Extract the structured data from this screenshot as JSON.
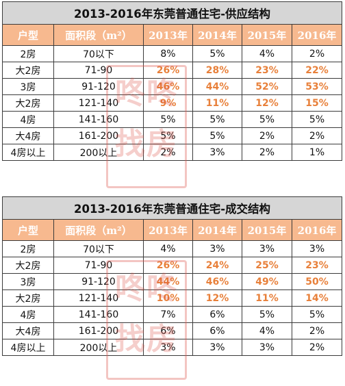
{
  "tables": [
    {
      "title": "2013-2016年东莞普通住宅-供应结构",
      "headers": [
        "户型",
        "面积段（m²）",
        "2013年",
        "2014年",
        "2015年",
        "2016年"
      ],
      "rows": [
        {
          "type": "2房",
          "range": "70以下",
          "y2013": "8%",
          "y2014": "5%",
          "y2015": "4%",
          "y2016": "2%",
          "hl": false
        },
        {
          "type": "大2房",
          "range": "71-90",
          "y2013": "26%",
          "y2014": "28%",
          "y2015": "23%",
          "y2016": "22%",
          "hl": true
        },
        {
          "type": "3房",
          "range": "91-120",
          "y2013": "46%",
          "y2014": "44%",
          "y2015": "52%",
          "y2016": "53%",
          "hl": true
        },
        {
          "type": "大2房",
          "range": "121-140",
          "y2013": "9%",
          "y2014": "11%",
          "y2015": "12%",
          "y2016": "15%",
          "hl": true
        },
        {
          "type": "4房",
          "range": "141-160",
          "y2013": "5%",
          "y2014": "5%",
          "y2015": "5%",
          "y2016": "5%",
          "hl": false
        },
        {
          "type": "大4房",
          "range": "161-200",
          "y2013": "5%",
          "y2014": "5%",
          "y2015": "2%",
          "y2016": "2%",
          "hl": false
        },
        {
          "type": "4房以上",
          "range": "200以上",
          "y2013": "2%",
          "y2014": "3%",
          "y2015": "2%",
          "y2016": "1%",
          "hl": false
        }
      ]
    },
    {
      "title": "2013-2016年东莞普通住宅-成交结构",
      "headers": [
        "户型",
        "面积段（m²）",
        "2013年",
        "2014年",
        "2015年",
        "2016年"
      ],
      "rows": [
        {
          "type": "2房",
          "range": "70以下",
          "y2013": "4%",
          "y2014": "3%",
          "y2015": "3%",
          "y2016": "3%",
          "hl": false
        },
        {
          "type": "大2房",
          "range": "71-90",
          "y2013": "26%",
          "y2014": "24%",
          "y2015": "25%",
          "y2016": "23%",
          "hl": true
        },
        {
          "type": "3房",
          "range": "91-120",
          "y2013": "44%",
          "y2014": "46%",
          "y2015": "49%",
          "y2016": "50%",
          "hl": true
        },
        {
          "type": "大2房",
          "range": "121-140",
          "y2013": "10%",
          "y2014": "12%",
          "y2015": "11%",
          "y2016": "14%",
          "hl": true
        },
        {
          "type": "4房",
          "range": "141-160",
          "y2013": "7%",
          "y2014": "6%",
          "y2015": "5%",
          "y2016": "5%",
          "hl": false
        },
        {
          "type": "大4房",
          "range": "161-200",
          "y2013": "6%",
          "y2014": "6%",
          "y2015": "4%",
          "y2016": "2%",
          "hl": false
        },
        {
          "type": "4房以上",
          "range": "200以上",
          "y2013": "3%",
          "y2014": "3%",
          "y2015": "3%",
          "y2016": "2%",
          "hl": false
        }
      ]
    }
  ],
  "watermark": {
    "line1": "咚咚",
    "line2": "找房"
  },
  "colors": {
    "header_bg": "#f7b98f",
    "title_bg": "#d6d6d6",
    "highlight_text": "#e8803a"
  }
}
